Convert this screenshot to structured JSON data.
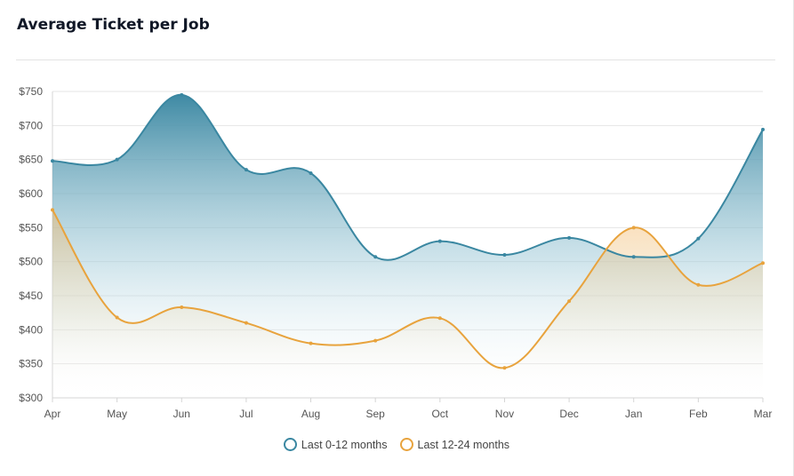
{
  "card": {
    "title": "Average Ticket per Job"
  },
  "chart_data": {
    "type": "area",
    "categories": [
      "Apr",
      "May",
      "Jun",
      "Jul",
      "Aug",
      "Sep",
      "Oct",
      "Nov",
      "Dec",
      "Jan",
      "Feb",
      "Mar"
    ],
    "series": [
      {
        "name": "Last 0-12 months",
        "color": "#3a87a1",
        "values": [
          648,
          650,
          745,
          635,
          630,
          507,
          530,
          510,
          535,
          507,
          534,
          694
        ]
      },
      {
        "name": "Last 12-24 months",
        "color": "#e8a33d",
        "values": [
          576,
          418,
          433,
          410,
          380,
          384,
          417,
          344,
          442,
          550,
          466,
          498
        ]
      }
    ],
    "y_ticks": [
      "$300",
      "$350",
      "$400",
      "$450",
      "$500",
      "$550",
      "$600",
      "$650",
      "$700",
      "$750"
    ],
    "ylim": [
      300,
      750
    ],
    "grid": true,
    "legend": "bottom-center",
    "title": "",
    "xlabel": "",
    "ylabel": ""
  }
}
